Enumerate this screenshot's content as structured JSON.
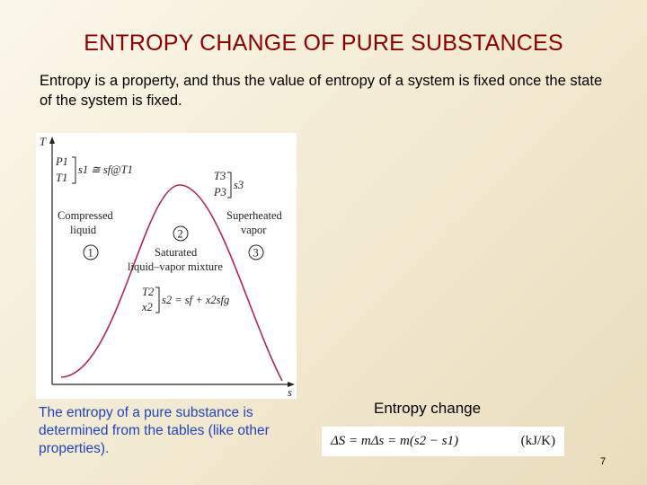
{
  "title": "ENTROPY CHANGE OF PURE SUBSTANCES",
  "intro": "Entropy is a property, and thus the value of entropy of a system is fixed once the state of the system is fixed.",
  "diagram": {
    "axis_t": "T",
    "axis_s": "s",
    "state1_props": [
      "P1",
      "T1"
    ],
    "state1_eq": "s1 ≅ sf@T1",
    "state3_props": [
      "T3",
      "P3"
    ],
    "state3_eq": "s3",
    "region_compressed": [
      "Compressed",
      "liquid"
    ],
    "region_superheated": [
      "Superheated",
      "vapor"
    ],
    "region_mixture": [
      "Saturated",
      "liquid–vapor mixture"
    ],
    "state2_props": [
      "T2",
      "x2"
    ],
    "state2_eq": "s2 = sf + x2sfg",
    "markers": [
      "1",
      "2",
      "3"
    ],
    "curve_color": "#b0245e"
  },
  "caption": "The entropy of a pure substance is determined from the tables (like other properties).",
  "entropy_change_label": "Entropy change",
  "equation": "ΔS = mΔs = m(s2 − s1)",
  "equation_units": "(kJ/K)",
  "page_number": "7"
}
